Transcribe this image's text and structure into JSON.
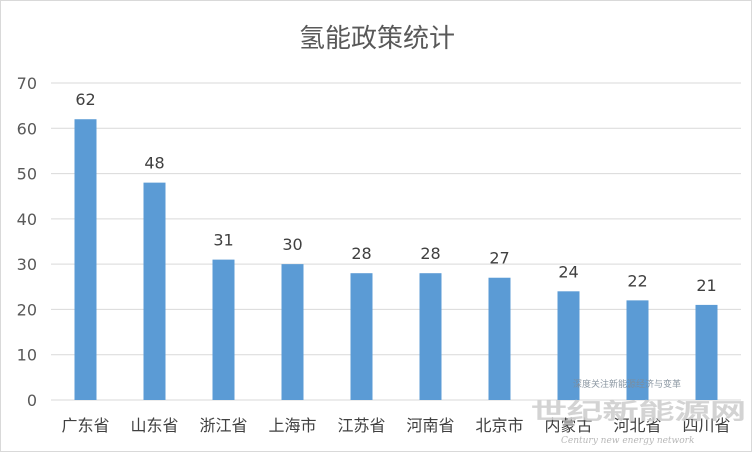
{
  "chart_data": {
    "type": "bar",
    "title": "氢能政策统计",
    "categories": [
      "广东省",
      "山东省",
      "浙江省",
      "上海市",
      "江苏省",
      "河南省",
      "北京市",
      "内蒙古",
      "河北省",
      "四川省"
    ],
    "values": [
      62,
      48,
      31,
      30,
      28,
      28,
      27,
      24,
      22,
      21
    ],
    "ylim": [
      0,
      70
    ],
    "yticks": [
      0,
      10,
      20,
      30,
      40,
      50,
      60,
      70
    ],
    "grid": true,
    "data_labels": true,
    "bar_color": "#5b9bd5"
  },
  "watermark": {
    "tagline": "深度关注新能源经济与变革",
    "name": "世纪新能源网",
    "name_en": "Century new energy network"
  }
}
